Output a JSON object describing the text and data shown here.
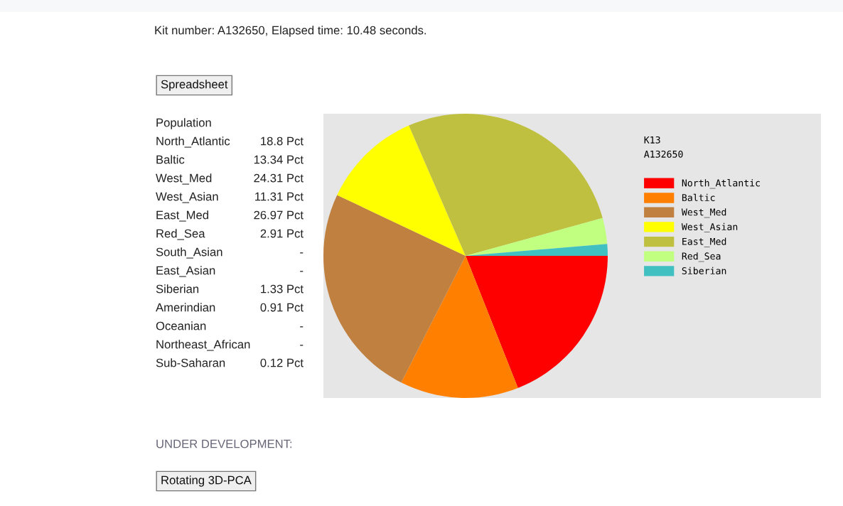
{
  "chart_data": [
    {
      "type": "other",
      "title": "Population",
      "categories": [
        "North_Atlantic",
        "Baltic",
        "West_Med",
        "West_Asian",
        "East_Med",
        "Red_Sea",
        "South_Asian",
        "East_Asian",
        "Siberian",
        "Amerindian",
        "Oceanian",
        "Northeast_African",
        "Sub-Saharan"
      ],
      "value_labels": [
        "18.8 Pct",
        "13.34 Pct",
        "24.31 Pct",
        "11.31 Pct",
        "26.97 Pct",
        "2.91 Pct",
        "-",
        "-",
        "1.33 Pct",
        "0.91 Pct",
        "-",
        "-",
        "0.12 Pct"
      ],
      "annotations": [
        "Kit number: A132650, Elapsed time: 10.48 seconds.",
        "Spreadsheet",
        "UNDER DEVELOPMENT:",
        "Rotating 3D-PCA"
      ]
    },
    {
      "type": "pie",
      "title": "K13",
      "subtitle": "A132650",
      "categories": [
        "North_Atlantic",
        "Baltic",
        "West_Med",
        "West_Asian",
        "East_Med",
        "Red_Sea",
        "Siberian"
      ],
      "values": [
        18.8,
        13.34,
        24.31,
        11.31,
        26.97,
        2.91,
        1.33
      ],
      "colors": [
        "#ff0000",
        "#ff8000",
        "#c08040",
        "#ffff00",
        "#c0c040",
        "#c0ff80",
        "#40c0c0"
      ],
      "legend": "top right"
    }
  ]
}
